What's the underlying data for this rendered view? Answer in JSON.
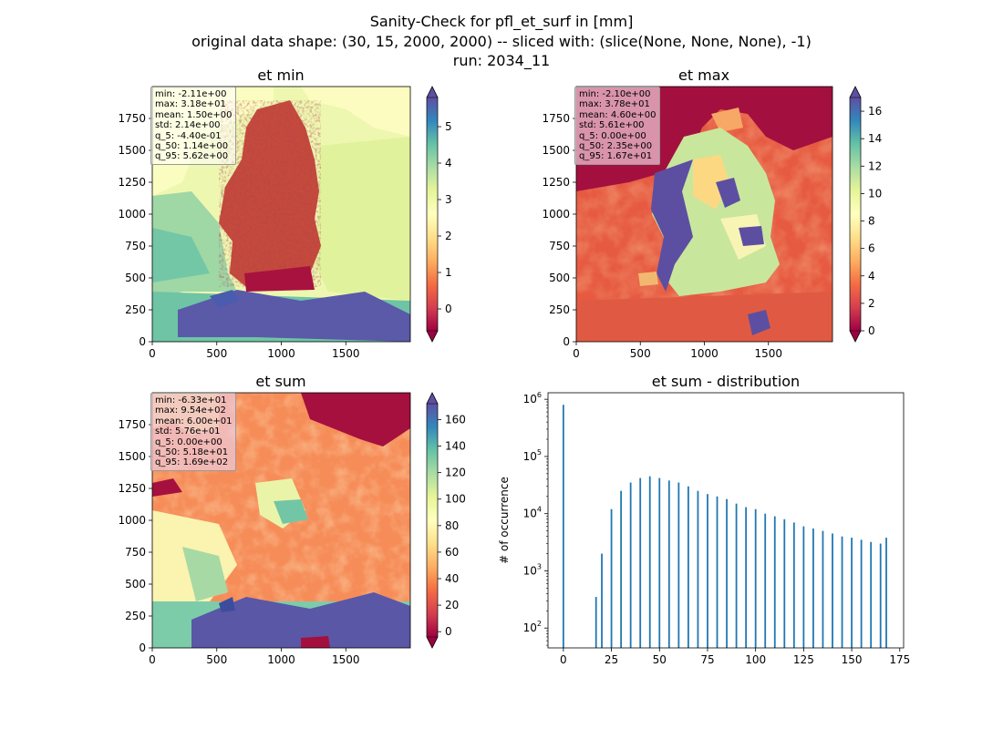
{
  "suptitle": {
    "line1": "Sanity-Check for pfl_et_surf in [mm]",
    "line2": "original data shape: (30, 15, 2000, 2000) -- sliced with: (slice(None, None, None), -1)",
    "line3": "run: 2034_11"
  },
  "chart_data": [
    {
      "type": "heatmap",
      "title": "et min",
      "xlim": [
        0,
        2000
      ],
      "ylim": [
        0,
        2000
      ],
      "xticks": [
        "0",
        "500",
        "1000",
        "1500"
      ],
      "yticks": [
        "0",
        "250",
        "500",
        "750",
        "1000",
        "1250",
        "1500",
        "1750"
      ],
      "colorbar": {
        "range": [
          -0.6,
          5.8
        ],
        "ticks": [
          "0",
          "1",
          "2",
          "3",
          "4",
          "5"
        ],
        "extend": "both"
      },
      "stats": [
        "min: -2.11e+00",
        "max: 3.18e+01",
        "mean: 1.50e+00",
        "std: 2.14e+00",
        "q_5: -4.40e-01",
        "q_50: 1.14e+00",
        "q_95: 5.62e+00"
      ]
    },
    {
      "type": "heatmap",
      "title": "et max",
      "xlim": [
        0,
        2000
      ],
      "ylim": [
        0,
        2000
      ],
      "xticks": [
        "0",
        "500",
        "1000",
        "1500"
      ],
      "yticks": [
        "0",
        "250",
        "500",
        "750",
        "1000",
        "1250",
        "1500",
        "1750"
      ],
      "colorbar": {
        "range": [
          0,
          17
        ],
        "ticks": [
          "0",
          "2",
          "4",
          "6",
          "8",
          "10",
          "12",
          "14",
          "16"
        ],
        "extend": "both"
      },
      "stats": [
        "min: -2.10e+00",
        "max: 3.78e+01",
        "mean: 4.60e+00",
        "std: 5.61e+00",
        "q_5: 0.00e+00",
        "q_50: 2.35e+00",
        "q_95: 1.67e+01"
      ]
    },
    {
      "type": "heatmap",
      "title": "et sum",
      "xlim": [
        0,
        2000
      ],
      "ylim": [
        0,
        2000
      ],
      "xticks": [
        "0",
        "500",
        "1000",
        "1500"
      ],
      "yticks": [
        "0",
        "250",
        "500",
        "750",
        "1000",
        "1250",
        "1500",
        "1750"
      ],
      "colorbar": {
        "range": [
          -4,
          172
        ],
        "ticks": [
          "0",
          "20",
          "40",
          "60",
          "80",
          "100",
          "120",
          "140",
          "160"
        ],
        "extend": "both"
      },
      "stats": [
        "min: -6.33e+01",
        "max: 9.54e+02",
        "mean: 6.00e+01",
        "std: 5.76e+01",
        "q_5: 0.00e+00",
        "q_50: 5.18e+01",
        "q_95: 1.69e+02"
      ]
    },
    {
      "type": "bar",
      "title": "et sum - distribution",
      "ylabel": "# of occurrence",
      "yscale": "log",
      "xlim": [
        -8,
        177
      ],
      "ylim": [
        45,
        1300000
      ],
      "xticks": [
        0,
        25,
        50,
        75,
        100,
        125,
        150,
        175
      ],
      "yticks": [
        {
          "value": 100,
          "base": "10",
          "exp": "2"
        },
        {
          "value": 1000,
          "base": "10",
          "exp": "3"
        },
        {
          "value": 10000,
          "base": "10",
          "exp": "4"
        },
        {
          "value": 100000,
          "base": "10",
          "exp": "5"
        },
        {
          "value": 1000000,
          "base": "10",
          "exp": "6"
        }
      ],
      "bin_width": 0.85,
      "x": [
        0,
        17,
        20,
        25,
        30,
        35,
        40,
        45,
        50,
        55,
        60,
        65,
        70,
        75,
        80,
        85,
        90,
        95,
        100,
        105,
        110,
        115,
        120,
        125,
        130,
        135,
        140,
        145,
        150,
        155,
        160,
        165,
        168
      ],
      "values": [
        800000,
        350,
        2000,
        12000,
        25000,
        35000,
        42000,
        45000,
        42000,
        38000,
        35000,
        30000,
        25000,
        22000,
        20000,
        18000,
        15000,
        13000,
        12000,
        10000,
        9000,
        8000,
        7000,
        6000,
        5500,
        5000,
        4500,
        4000,
        3800,
        3500,
        3200,
        3000,
        3800
      ]
    }
  ]
}
